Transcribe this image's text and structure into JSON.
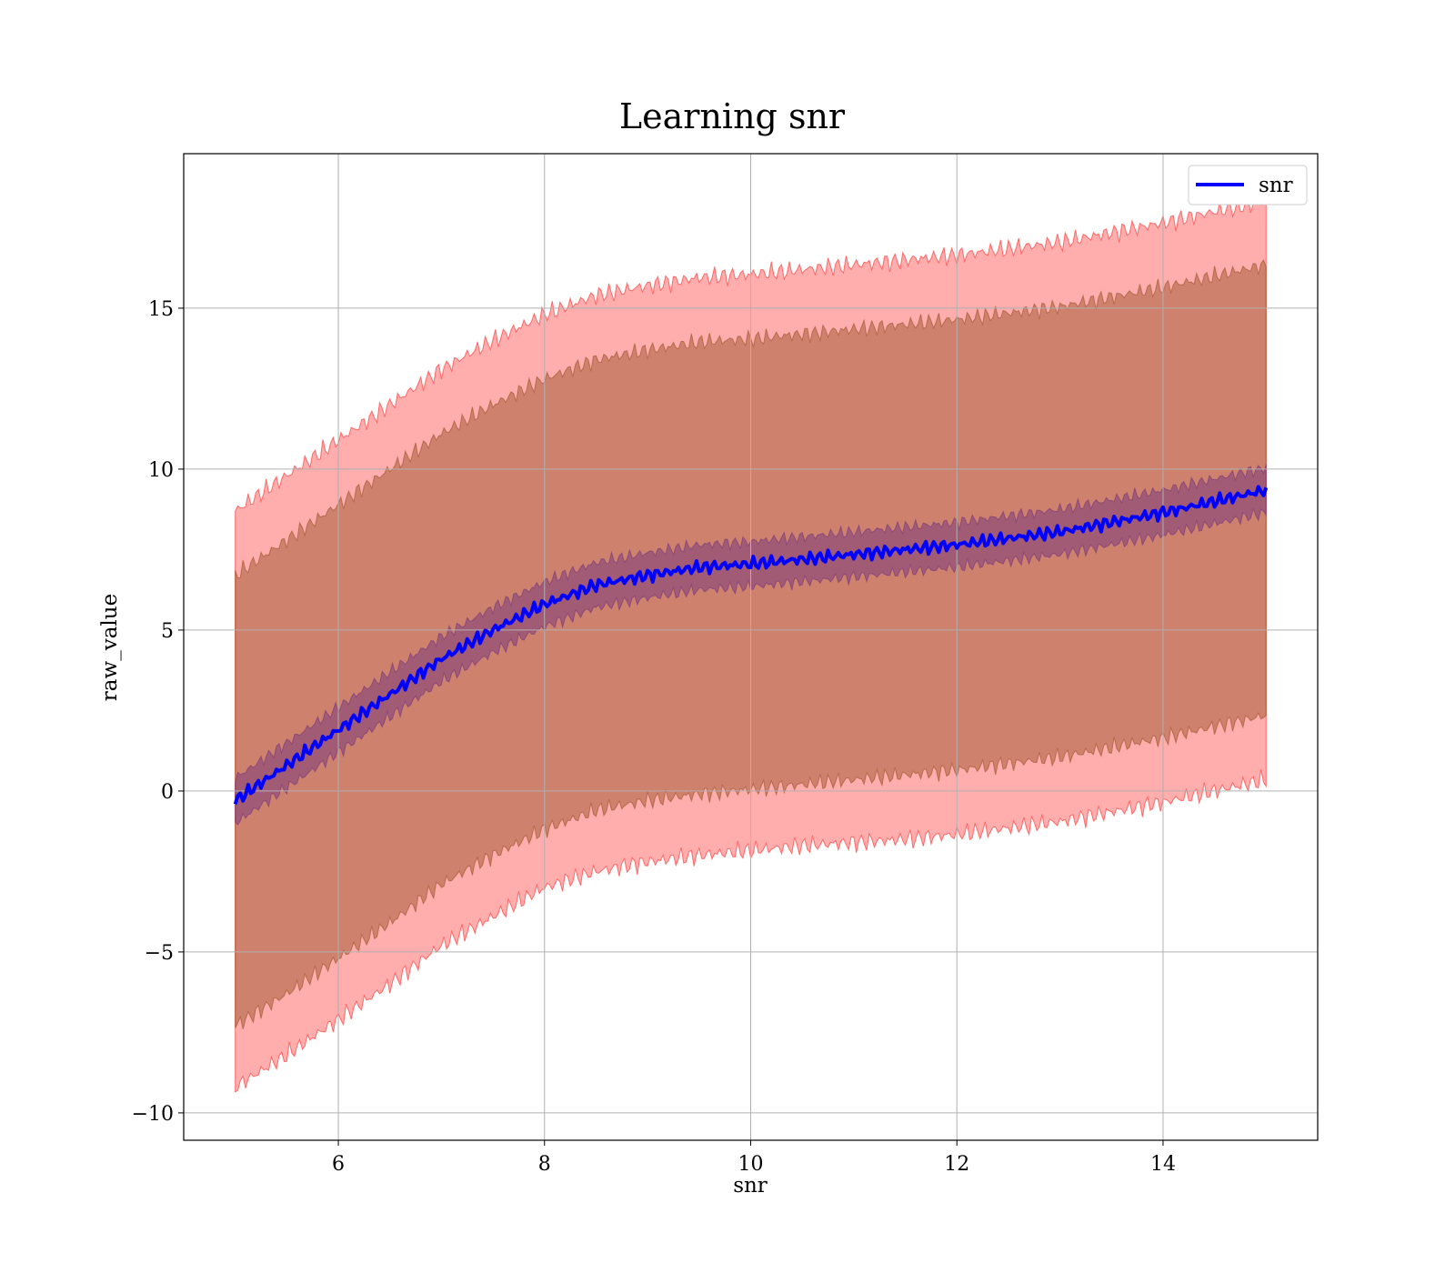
{
  "chart_data": {
    "type": "line",
    "title": "Learning snr",
    "xlabel": "snr",
    "ylabel": "raw_value",
    "xlim": [
      4.5,
      15.5
    ],
    "ylim": [
      -10.85,
      19.8
    ],
    "xticks": [
      6,
      8,
      10,
      12,
      14
    ],
    "yticks": [
      -10,
      -5,
      0,
      5,
      10,
      15
    ],
    "xtick_labels": [
      "6",
      "8",
      "10",
      "12",
      "14"
    ],
    "ytick_labels": [
      "−10",
      "−5",
      "0",
      "5",
      "10",
      "15"
    ],
    "grid": true,
    "legend": {
      "placement": "top-right",
      "entries": [
        "snr"
      ]
    },
    "colors": {
      "line": "#0000ff",
      "band": "#ff0000",
      "band_mid": "#8b4513",
      "band_inner": "#6a2c80"
    },
    "x": [
      5.0,
      5.5,
      6.0,
      6.5,
      7.0,
      7.5,
      8.0,
      8.5,
      9.0,
      9.5,
      10.0,
      10.5,
      11.0,
      11.5,
      12.0,
      12.5,
      13.0,
      13.5,
      14.0,
      14.5,
      15.0
    ],
    "series": [
      {
        "name": "snr",
        "values": [
          -0.3,
          0.8,
          1.9,
          3.0,
          4.1,
          5.0,
          5.8,
          6.4,
          6.7,
          6.95,
          7.05,
          7.2,
          7.35,
          7.5,
          7.65,
          7.85,
          8.05,
          8.35,
          8.65,
          9.0,
          9.35
        ]
      }
    ],
    "bands": [
      {
        "lower": [
          -9.2,
          -8.2,
          -7.1,
          -6.0,
          -4.8,
          -3.9,
          -3.0,
          -2.5,
          -2.2,
          -2.0,
          -1.85,
          -1.7,
          -1.6,
          -1.5,
          -1.35,
          -1.15,
          -0.95,
          -0.65,
          -0.35,
          0.0,
          0.35
        ],
        "upper": [
          8.7,
          9.8,
          10.9,
          12.0,
          13.1,
          14.0,
          14.8,
          15.4,
          15.7,
          15.95,
          16.05,
          16.2,
          16.35,
          16.5,
          16.65,
          16.85,
          17.05,
          17.35,
          17.65,
          18.0,
          18.3
        ]
      },
      {
        "lower": [
          -7.3,
          -6.3,
          -5.2,
          -4.1,
          -2.9,
          -2.0,
          -1.2,
          -0.6,
          -0.3,
          -0.1,
          0.05,
          0.2,
          0.35,
          0.5,
          0.65,
          0.85,
          1.05,
          1.35,
          1.65,
          2.0,
          2.35
        ],
        "upper": [
          6.7,
          7.8,
          8.9,
          10.0,
          11.1,
          12.0,
          12.8,
          13.4,
          13.7,
          13.95,
          14.05,
          14.2,
          14.35,
          14.5,
          14.65,
          14.85,
          15.05,
          15.35,
          15.65,
          16.0,
          16.35
        ]
      },
      {
        "lower": [
          -1.0,
          0.1,
          1.2,
          2.3,
          3.4,
          4.3,
          5.1,
          5.7,
          6.0,
          6.25,
          6.35,
          6.5,
          6.65,
          6.8,
          6.95,
          7.15,
          7.35,
          7.65,
          7.95,
          8.3,
          8.65
        ],
        "upper": [
          0.4,
          1.5,
          2.6,
          3.7,
          4.8,
          5.7,
          6.5,
          7.1,
          7.4,
          7.65,
          7.75,
          7.9,
          8.05,
          8.2,
          8.35,
          8.55,
          8.75,
          9.05,
          9.35,
          9.7,
          10.05
        ]
      }
    ]
  }
}
